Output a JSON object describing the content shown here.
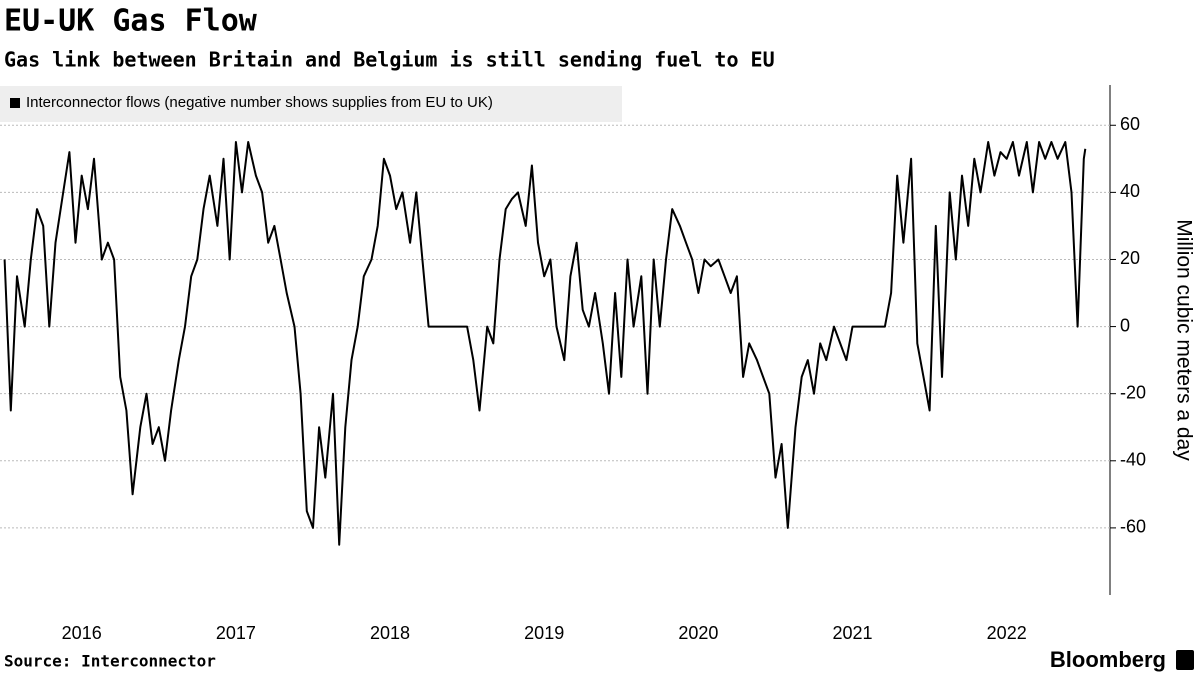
{
  "chart_data": {
    "type": "line",
    "title": "EU-UK Gas Flow",
    "subtitle": "Gas link between Britain and Belgium is still sending fuel to EU",
    "source": "Source: Interconnector",
    "brand": "Bloomberg",
    "y_axis_label": "Million cubic meters a day",
    "ylim": [
      -80,
      72
    ],
    "yticks": [
      -60,
      -40,
      -20,
      0,
      20,
      40,
      60
    ],
    "xlim": [
      2015.97,
      2023.17
    ],
    "xticks": [
      {
        "value": 2016.5,
        "label": "2016"
      },
      {
        "value": 2017.5,
        "label": "2017"
      },
      {
        "value": 2018.5,
        "label": "2018"
      },
      {
        "value": 2019.5,
        "label": "2019"
      },
      {
        "value": 2020.5,
        "label": "2020"
      },
      {
        "value": 2021.5,
        "label": "2021"
      },
      {
        "value": 2022.5,
        "label": "2022"
      }
    ],
    "grid": true,
    "series": [
      {
        "name": "Interconnector flows (negative number shows supplies from EU to UK)",
        "color": "#000000",
        "x": [
          2016,
          2016.04,
          2016.08,
          2016.13,
          2016.17,
          2016.21,
          2016.25,
          2016.29,
          2016.33,
          2016.38,
          2016.42,
          2016.46,
          2016.5,
          2016.54,
          2016.58,
          2016.63,
          2016.67,
          2016.71,
          2016.75,
          2016.79,
          2016.83,
          2016.88,
          2016.92,
          2016.96,
          2017,
          2017.04,
          2017.08,
          2017.13,
          2017.17,
          2017.21,
          2017.25,
          2017.29,
          2017.33,
          2017.38,
          2017.42,
          2017.46,
          2017.5,
          2017.54,
          2017.58,
          2017.63,
          2017.67,
          2017.71,
          2017.75,
          2017.79,
          2017.83,
          2017.88,
          2017.92,
          2017.96,
          2018,
          2018.04,
          2018.08,
          2018.13,
          2018.17,
          2018.21,
          2018.25,
          2018.29,
          2018.33,
          2018.38,
          2018.42,
          2018.46,
          2018.5,
          2018.54,
          2018.58,
          2018.63,
          2018.67,
          2018.71,
          2018.75,
          2018.79,
          2018.83,
          2018.88,
          2018.92,
          2018.96,
          2019,
          2019.04,
          2019.08,
          2019.13,
          2019.17,
          2019.21,
          2019.25,
          2019.29,
          2019.33,
          2019.38,
          2019.42,
          2019.46,
          2019.5,
          2019.54,
          2019.58,
          2019.63,
          2019.67,
          2019.71,
          2019.75,
          2019.79,
          2019.83,
          2019.88,
          2019.92,
          2019.96,
          2020,
          2020.04,
          2020.08,
          2020.13,
          2020.17,
          2020.21,
          2020.25,
          2020.29,
          2020.33,
          2020.38,
          2020.42,
          2020.46,
          2020.5,
          2020.54,
          2020.58,
          2020.63,
          2020.67,
          2020.71,
          2020.75,
          2020.79,
          2020.83,
          2020.88,
          2020.92,
          2020.96,
          2021,
          2021.04,
          2021.08,
          2021.13,
          2021.17,
          2021.21,
          2021.25,
          2021.29,
          2021.33,
          2021.38,
          2021.42,
          2021.46,
          2021.5,
          2021.54,
          2021.58,
          2021.63,
          2021.67,
          2021.71,
          2021.75,
          2021.79,
          2021.83,
          2021.88,
          2021.92,
          2021.96,
          2022,
          2022.04,
          2022.08,
          2022.13,
          2022.17,
          2022.21,
          2022.25,
          2022.29,
          2022.33,
          2022.38,
          2022.42,
          2022.46,
          2022.5,
          2022.54,
          2022.58,
          2022.63,
          2022.67,
          2022.71,
          2022.75,
          2022.79,
          2022.83,
          2022.88,
          2022.92,
          2022.96,
          2023,
          2023.01
        ],
        "values": [
          20,
          -25,
          15,
          0,
          20,
          35,
          30,
          0,
          25,
          40,
          52,
          25,
          45,
          35,
          50,
          20,
          25,
          20,
          -15,
          -25,
          -50,
          -30,
          -20,
          -35,
          -30,
          -40,
          -25,
          -10,
          0,
          15,
          20,
          35,
          45,
          30,
          50,
          20,
          55,
          40,
          55,
          45,
          40,
          25,
          30,
          20,
          10,
          0,
          -20,
          -55,
          -60,
          -30,
          -45,
          -20,
          -65,
          -30,
          -10,
          0,
          15,
          20,
          30,
          50,
          45,
          35,
          40,
          25,
          40,
          20,
          0,
          0,
          0,
          0,
          0,
          0,
          0,
          -10,
          -25,
          0,
          -5,
          20,
          35,
          38,
          40,
          30,
          48,
          25,
          15,
          20,
          0,
          -10,
          15,
          25,
          5,
          0,
          10,
          -5,
          -20,
          10,
          -15,
          20,
          0,
          15,
          -20,
          20,
          0,
          20,
          35,
          30,
          25,
          20,
          10,
          20,
          18,
          20,
          15,
          10,
          15,
          -15,
          -5,
          -10,
          -15,
          -20,
          -45,
          -35,
          -60,
          -30,
          -15,
          -10,
          -20,
          -5,
          -10,
          0,
          -5,
          -10,
          0,
          0,
          0,
          0,
          0,
          0,
          10,
          45,
          25,
          50,
          -5,
          -15,
          -25,
          30,
          -15,
          40,
          20,
          45,
          30,
          50,
          40,
          55,
          45,
          52,
          50,
          55,
          45,
          55,
          40,
          55,
          50,
          55,
          50,
          55,
          40,
          0,
          50,
          53
        ]
      }
    ]
  }
}
